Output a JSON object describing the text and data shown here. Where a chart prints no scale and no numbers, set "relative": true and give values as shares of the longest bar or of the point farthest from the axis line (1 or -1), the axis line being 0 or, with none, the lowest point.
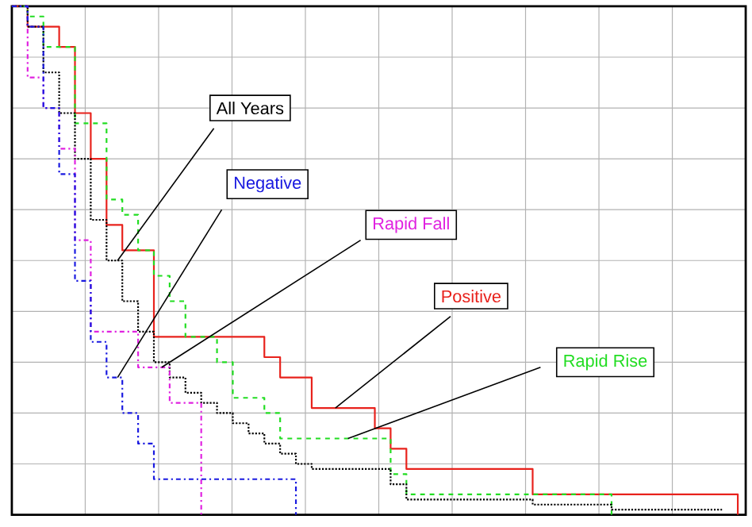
{
  "chart_data": {
    "type": "step",
    "relative": true,
    "grid": true,
    "tick_labels": false,
    "categories": [
      null,
      null,
      null,
      null,
      null,
      null,
      null,
      null,
      null,
      null,
      null,
      null,
      null,
      null,
      null,
      null,
      null,
      null,
      null,
      null,
      null,
      null,
      null,
      null,
      null,
      null,
      null,
      null,
      null,
      null,
      null,
      null,
      null,
      null,
      null,
      null,
      null,
      null,
      null,
      null,
      null,
      null,
      null,
      null,
      null,
      null,
      null
    ],
    "series": [
      {
        "name": "Positive",
        "color": "#e8221c",
        "line_style": "solid",
        "values": [
          1.0,
          0.96,
          0.96,
          0.92,
          0.79,
          0.7,
          0.57,
          0.52,
          0.52,
          0.35,
          0.35,
          0.35,
          0.35,
          0.35,
          0.35,
          0.35,
          0.31,
          0.27,
          0.27,
          0.21,
          0.21,
          0.21,
          0.21,
          0.17,
          0.13,
          0.09,
          0.09,
          0.09,
          0.09,
          0.09,
          0.09,
          0.09,
          0.09,
          0.04,
          0.04,
          0.04,
          0.04,
          0.04,
          0.04,
          0.04,
          0.04,
          0.04,
          0.04,
          0.04,
          0.04,
          0.04,
          0.0
        ]
      },
      {
        "name": "Rapid Rise",
        "color": "#22dd22",
        "line_style": "dashed",
        "values": [
          1.0,
          0.98,
          0.92,
          0.92,
          0.77,
          0.77,
          0.62,
          0.59,
          0.52,
          0.47,
          0.42,
          0.35,
          0.35,
          0.3,
          0.23,
          0.23,
          0.2,
          0.15,
          0.15,
          0.15,
          0.15,
          0.15,
          0.15,
          0.15,
          0.08,
          0.04,
          0.04,
          0.04,
          0.04,
          0.04,
          0.04,
          0.04,
          0.04,
          0.04,
          0.04,
          0.04,
          0.04,
          0.04,
          0.0,
          null,
          null,
          null,
          null,
          null,
          null,
          null,
          null
        ]
      },
      {
        "name": "All Years",
        "color": "#000000",
        "line_style": "dotted",
        "values": [
          1.0,
          0.96,
          0.87,
          0.79,
          0.7,
          0.58,
          0.5,
          0.42,
          0.36,
          0.3,
          0.27,
          0.24,
          0.22,
          0.2,
          0.18,
          0.16,
          0.14,
          0.12,
          0.1,
          0.09,
          0.09,
          0.09,
          0.09,
          0.09,
          0.06,
          0.03,
          0.03,
          0.03,
          0.03,
          0.03,
          0.03,
          0.03,
          0.03,
          0.02,
          0.02,
          0.02,
          0.02,
          0.02,
          0.01,
          0.01,
          0.01,
          0.01,
          0.01,
          0.01,
          0.01,
          0.01,
          null
        ]
      },
      {
        "name": "Rapid Fall",
        "color": "#e022e0",
        "line_style": "dashdot",
        "values": [
          1.0,
          0.86,
          0.8,
          0.72,
          0.54,
          0.36,
          0.36,
          0.36,
          0.29,
          0.29,
          0.22,
          0.22,
          0.0,
          null,
          null,
          null,
          null,
          null,
          null,
          null,
          null,
          null,
          null,
          null,
          null,
          null,
          null,
          null,
          null,
          null,
          null,
          null,
          null,
          null,
          null,
          null,
          null,
          null,
          null,
          null,
          null,
          null,
          null,
          null,
          null,
          null,
          null
        ]
      },
      {
        "name": "Negative",
        "color": "#1a1ae0",
        "line_style": "dashdot",
        "values": [
          1.0,
          0.96,
          0.8,
          0.67,
          0.46,
          0.34,
          0.27,
          0.2,
          0.14,
          0.07,
          0.07,
          0.07,
          0.07,
          0.07,
          0.07,
          0.07,
          0.07,
          0.07,
          0.0,
          null,
          null,
          null,
          null,
          null,
          null,
          null,
          null,
          null,
          null,
          null,
          null,
          null,
          null,
          null,
          null,
          null,
          null,
          null,
          null,
          null,
          null,
          null,
          null,
          null,
          null,
          null,
          null
        ]
      }
    ]
  }
}
